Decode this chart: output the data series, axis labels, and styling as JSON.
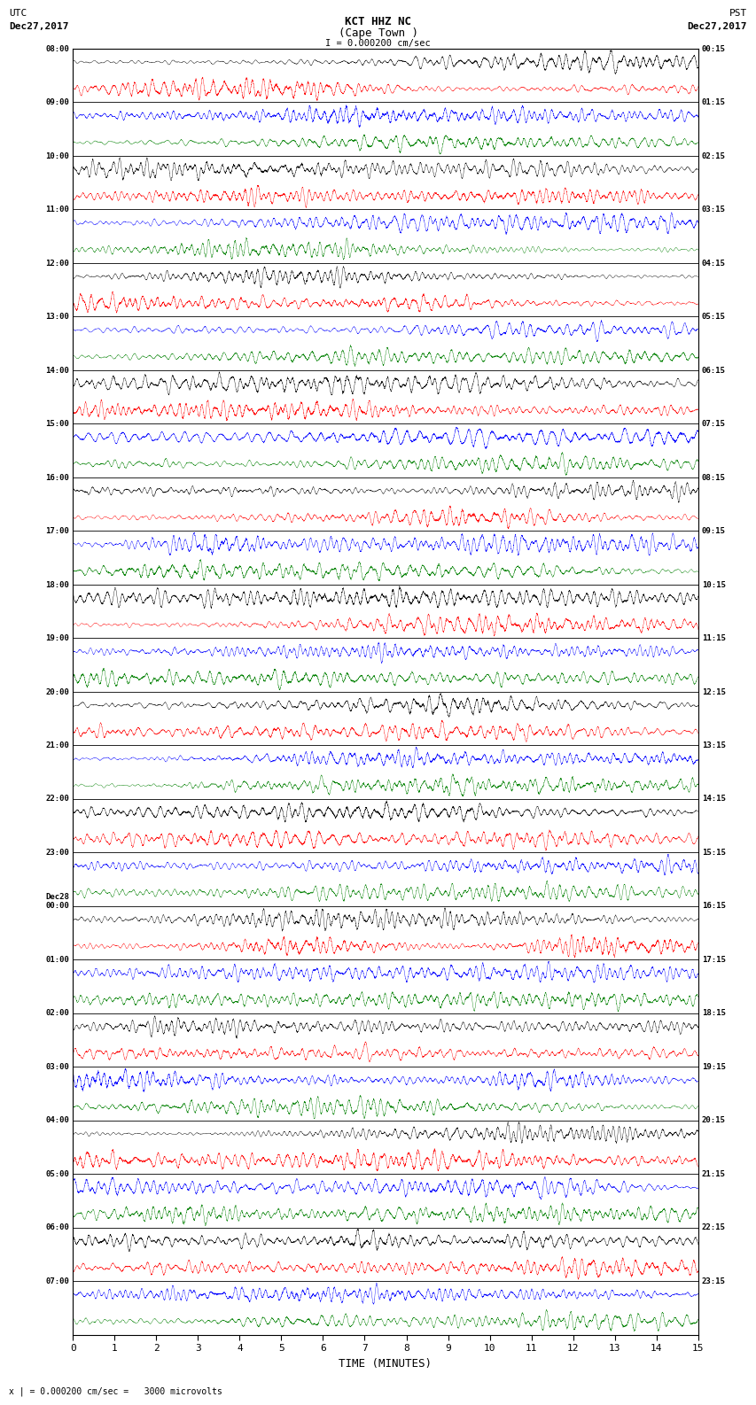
{
  "title_line1": "KCT HHZ NC",
  "title_line2": "(Cape Town )",
  "scale_bar": "I = 0.000200 cm/sec",
  "left_label_top": "UTC",
  "left_label_date": "Dec27,2017",
  "right_label_top": "PST",
  "right_label_date": "Dec27,2017",
  "bottom_label": "TIME (MINUTES)",
  "bottom_note": "x | = 0.000200 cm/sec =   3000 microvolts",
  "left_times_utc": [
    "08:00",
    "09:00",
    "10:00",
    "11:00",
    "12:00",
    "13:00",
    "14:00",
    "15:00",
    "16:00",
    "17:00",
    "18:00",
    "19:00",
    "20:00",
    "21:00",
    "22:00",
    "23:00",
    "Dec28\n00:00",
    "01:00",
    "02:00",
    "03:00",
    "04:00",
    "05:00",
    "06:00",
    "07:00"
  ],
  "right_times_pst": [
    "00:15",
    "01:15",
    "02:15",
    "03:15",
    "04:15",
    "05:15",
    "06:15",
    "07:15",
    "08:15",
    "09:15",
    "10:15",
    "11:15",
    "12:15",
    "13:15",
    "14:15",
    "15:15",
    "16:15",
    "17:15",
    "18:15",
    "19:15",
    "20:15",
    "21:15",
    "22:15",
    "23:15"
  ],
  "n_rows": 48,
  "n_cols_minutes": 15,
  "colors": [
    "black",
    "red",
    "blue",
    "green"
  ],
  "background_color": "white",
  "xlim": [
    0,
    15
  ],
  "xticks": [
    0,
    1,
    2,
    3,
    4,
    5,
    6,
    7,
    8,
    9,
    10,
    11,
    12,
    13,
    14,
    15
  ],
  "amplitude_scale": 0.44,
  "seed": 42
}
